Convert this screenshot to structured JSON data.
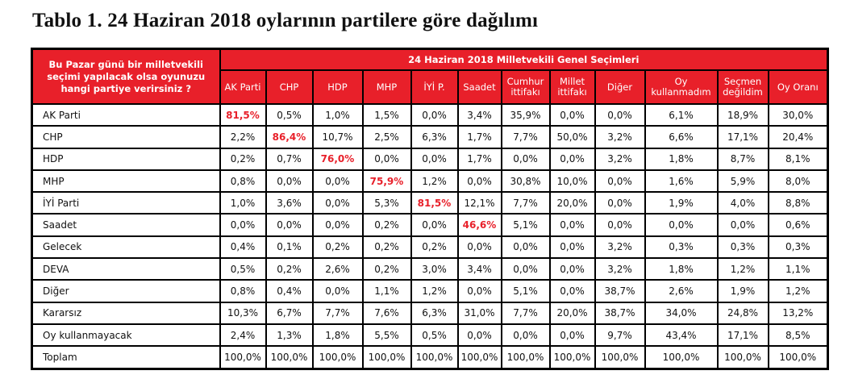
{
  "title": "Tablo 1. 24 Haziran 2018 oylarının partilere göre dağılımı",
  "question": "Bu Pazar günü bir milletvekili seçimi yapılacak olsa oyunuzu hangi partiye verirsiniz ?",
  "group_header": "24 Haziran 2018 Milletvekili Genel Seçimleri",
  "columns": [
    "AK Parti",
    "CHP",
    "HDP",
    "MHP",
    "İYİ P.",
    "Saadet",
    "Cumhur ittifakı",
    "Millet ittifakı",
    "Diğer",
    "Oy kullanmadım",
    "Seçmen değildim",
    "Oy Oranı"
  ],
  "highlight_color": "#e8202a",
  "rows": [
    {
      "label": "AK Parti",
      "hl": 0,
      "values": [
        "81,5%",
        "0,5%",
        "1,0%",
        "1,5%",
        "0,0%",
        "3,4%",
        "35,9%",
        "0,0%",
        "0,0%",
        "6,1%",
        "18,9%",
        "30,0%"
      ]
    },
    {
      "label": "CHP",
      "hl": 1,
      "values": [
        "2,2%",
        "86,4%",
        "10,7%",
        "2,5%",
        "6,3%",
        "1,7%",
        "7,7%",
        "50,0%",
        "3,2%",
        "6,6%",
        "17,1%",
        "20,4%"
      ]
    },
    {
      "label": "HDP",
      "hl": 2,
      "values": [
        "0,2%",
        "0,7%",
        "76,0%",
        "0,0%",
        "0,0%",
        "1,7%",
        "0,0%",
        "0,0%",
        "3,2%",
        "1,8%",
        "8,7%",
        "8,1%"
      ]
    },
    {
      "label": "MHP",
      "hl": 3,
      "values": [
        "0,8%",
        "0,0%",
        "0,0%",
        "75,9%",
        "1,2%",
        "0,0%",
        "30,8%",
        "10,0%",
        "0,0%",
        "1,6%",
        "5,9%",
        "8,0%"
      ]
    },
    {
      "label": "İYİ Parti",
      "hl": 4,
      "values": [
        "1,0%",
        "3,6%",
        "0,0%",
        "5,3%",
        "81,5%",
        "12,1%",
        "7,7%",
        "20,0%",
        "0,0%",
        "1,9%",
        "4,0%",
        "8,8%"
      ]
    },
    {
      "label": "Saadet",
      "hl": 5,
      "values": [
        "0,0%",
        "0,0%",
        "0,0%",
        "0,2%",
        "0,0%",
        "46,6%",
        "5,1%",
        "0,0%",
        "0,0%",
        "0,0%",
        "0,0%",
        "0,6%"
      ]
    },
    {
      "label": "Gelecek",
      "hl": -1,
      "values": [
        "0,4%",
        "0,1%",
        "0,2%",
        "0,2%",
        "0,2%",
        "0,0%",
        "0,0%",
        "0,0%",
        "3,2%",
        "0,3%",
        "0,3%",
        "0,3%"
      ]
    },
    {
      "label": "DEVA",
      "hl": -1,
      "values": [
        "0,5%",
        "0,2%",
        "2,6%",
        "0,2%",
        "3,0%",
        "3,4%",
        "0,0%",
        "0,0%",
        "3,2%",
        "1,8%",
        "1,2%",
        "1,1%"
      ]
    },
    {
      "label": "Diğer",
      "hl": -1,
      "values": [
        "0,8%",
        "0,4%",
        "0,0%",
        "1,1%",
        "1,2%",
        "0,0%",
        "5,1%",
        "0,0%",
        "38,7%",
        "2,6%",
        "1,9%",
        "1,2%"
      ]
    },
    {
      "label": "Kararsız",
      "hl": -1,
      "values": [
        "10,3%",
        "6,7%",
        "7,7%",
        "7,6%",
        "6,3%",
        "31,0%",
        "7,7%",
        "20,0%",
        "38,7%",
        "34,0%",
        "24,8%",
        "13,2%"
      ]
    },
    {
      "label": "Oy kullanmayacak",
      "hl": -1,
      "values": [
        "2,4%",
        "1,3%",
        "1,8%",
        "5,5%",
        "0,5%",
        "0,0%",
        "0,0%",
        "0,0%",
        "9,7%",
        "43,4%",
        "17,1%",
        "8,5%"
      ]
    },
    {
      "label": "Toplam",
      "hl": -1,
      "values": [
        "100,0%",
        "100,0%",
        "100,0%",
        "100,0%",
        "100,0%",
        "100,0%",
        "100,0%",
        "100,0%",
        "100,0%",
        "100,0%",
        "100,0%",
        "100,0%"
      ]
    }
  ]
}
